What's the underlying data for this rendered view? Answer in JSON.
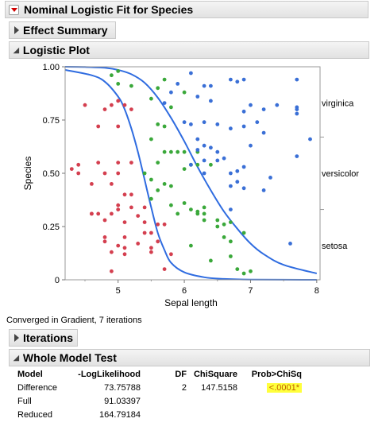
{
  "report": {
    "title": "Nominal Logistic Fit for Species",
    "effect_summary": "Effect Summary",
    "logistic_plot": "Logistic Plot",
    "converged": "Converged in Gradient, 7 iterations",
    "iterations": "Iterations",
    "whole_model_test": "Whole Model Test"
  },
  "chart_data": {
    "type": "scatter",
    "xlabel": "Sepal length",
    "ylabel": "Species",
    "xlim": [
      4.2,
      8.05
    ],
    "ylim": [
      0,
      1
    ],
    "x_ticks": [
      "5",
      "6",
      "7",
      "8"
    ],
    "y_ticks": [
      "0",
      "0.25",
      "0.50",
      "0.75",
      "1.00"
    ],
    "categories_right": [
      "virginica",
      "versicolor",
      "setosa"
    ],
    "colors": {
      "setosa": "#d43f4f",
      "versicolor": "#3aa83a",
      "virginica": "#3a6fd6",
      "curve": "#2f6ce0"
    },
    "curves": [
      {
        "name": "setosa|versicolor boundary",
        "x": [
          4.2,
          4.6,
          4.8,
          5.0,
          5.1,
          5.2,
          5.3,
          5.4,
          5.5,
          5.6,
          5.7,
          5.8,
          6.0,
          6.3,
          6.6,
          7.0,
          8.0
        ],
        "y": [
          0.985,
          0.96,
          0.93,
          0.86,
          0.8,
          0.71,
          0.6,
          0.47,
          0.34,
          0.22,
          0.14,
          0.08,
          0.035,
          0.012,
          0.004,
          0.001,
          0.0
        ]
      },
      {
        "name": "versicolor|virginica boundary",
        "x": [
          4.2,
          4.5,
          4.8,
          5.0,
          5.2,
          5.4,
          5.6,
          5.8,
          6.0,
          6.2,
          6.4,
          6.6,
          6.8,
          7.0,
          7.2,
          7.5,
          8.0
        ],
        "y": [
          1.0,
          0.999,
          0.995,
          0.985,
          0.965,
          0.925,
          0.855,
          0.76,
          0.65,
          0.53,
          0.42,
          0.32,
          0.24,
          0.17,
          0.12,
          0.07,
          0.03
        ]
      }
    ],
    "series": [
      {
        "name": "setosa",
        "points": [
          [
            4.3,
            0.52
          ],
          [
            4.4,
            0.54
          ],
          [
            4.4,
            0.5
          ],
          [
            4.5,
            0.82
          ],
          [
            4.6,
            0.31
          ],
          [
            4.6,
            0.31
          ],
          [
            4.7,
            0.31
          ],
          [
            4.8,
            0.18
          ],
          [
            4.8,
            0.2
          ],
          [
            4.9,
            0.31
          ],
          [
            5.0,
            0.33
          ],
          [
            5.0,
            0.35
          ],
          [
            5.0,
            0.16
          ],
          [
            4.9,
            0.13
          ],
          [
            5.1,
            0.12
          ],
          [
            5.1,
            0.2
          ],
          [
            5.1,
            0.27
          ],
          [
            5.1,
            0.82
          ],
          [
            5.0,
            0.84
          ],
          [
            5.0,
            0.72
          ],
          [
            5.2,
            0.8
          ],
          [
            5.2,
            0.55
          ],
          [
            5.2,
            0.4
          ],
          [
            5.4,
            0.34
          ],
          [
            5.4,
            0.27
          ],
          [
            5.3,
            0.17
          ],
          [
            5.5,
            0.15
          ],
          [
            5.7,
            0.26
          ],
          [
            5.8,
            0.12
          ],
          [
            5.6,
            0.18
          ],
          [
            4.7,
            0.72
          ],
          [
            4.8,
            0.8
          ],
          [
            4.7,
            0.55
          ],
          [
            4.6,
            0.45
          ],
          [
            4.8,
            0.5
          ],
          [
            5.0,
            0.5
          ],
          [
            5.1,
            0.4
          ],
          [
            5.2,
            0.34
          ],
          [
            5.3,
            0.3
          ],
          [
            5.4,
            0.22
          ],
          [
            5.5,
            0.13
          ],
          [
            5.7,
            0.05
          ],
          [
            4.9,
            0.04
          ],
          [
            4.9,
            0.82
          ],
          [
            5.0,
            0.55
          ],
          [
            5.1,
            0.15
          ],
          [
            4.8,
            0.28
          ],
          [
            4.9,
            0.45
          ],
          [
            5.6,
            0.26
          ],
          [
            5.5,
            0.22
          ]
        ]
      },
      {
        "name": "versicolor",
        "points": [
          [
            4.9,
            0.96
          ],
          [
            5.0,
            0.98
          ],
          [
            5.0,
            0.92
          ],
          [
            5.2,
            0.91
          ],
          [
            5.5,
            0.85
          ],
          [
            5.6,
            0.9
          ],
          [
            5.7,
            0.94
          ],
          [
            5.6,
            0.73
          ],
          [
            5.8,
            0.81
          ],
          [
            5.6,
            0.55
          ],
          [
            5.7,
            0.6
          ],
          [
            5.9,
            0.6
          ],
          [
            6.0,
            0.6
          ],
          [
            5.5,
            0.47
          ],
          [
            5.8,
            0.44
          ],
          [
            6.0,
            0.36
          ],
          [
            6.2,
            0.32
          ],
          [
            6.3,
            0.28
          ],
          [
            6.5,
            0.28
          ],
          [
            6.6,
            0.2
          ],
          [
            6.7,
            0.18
          ],
          [
            6.7,
            0.27
          ],
          [
            6.9,
            0.22
          ],
          [
            7.0,
            0.04
          ],
          [
            6.9,
            0.03
          ],
          [
            6.1,
            0.16
          ],
          [
            6.4,
            0.09
          ],
          [
            6.3,
            0.31
          ],
          [
            6.2,
            0.31
          ],
          [
            5.8,
            0.35
          ],
          [
            5.7,
            0.45
          ],
          [
            6.4,
            0.54
          ],
          [
            6.1,
            0.54
          ],
          [
            6.0,
            0.52
          ],
          [
            5.9,
            0.31
          ],
          [
            5.6,
            0.42
          ],
          [
            5.4,
            0.5
          ],
          [
            5.5,
            0.66
          ],
          [
            5.7,
            0.72
          ],
          [
            6.0,
            0.88
          ],
          [
            5.5,
            0.38
          ],
          [
            5.8,
            0.6
          ],
          [
            6.1,
            0.33
          ],
          [
            6.2,
            0.54
          ],
          [
            6.6,
            0.26
          ],
          [
            6.7,
            0.11
          ],
          [
            6.8,
            0.05
          ],
          [
            6.5,
            0.25
          ],
          [
            6.2,
            0.6
          ],
          [
            6.3,
            0.34
          ]
        ]
      },
      {
        "name": "virginica",
        "points": [
          [
            5.9,
            0.92
          ],
          [
            6.1,
            0.97
          ],
          [
            6.3,
            0.91
          ],
          [
            6.4,
            0.91
          ],
          [
            6.7,
            0.94
          ],
          [
            6.8,
            0.93
          ],
          [
            6.9,
            0.94
          ],
          [
            7.7,
            0.94
          ],
          [
            7.4,
            0.82
          ],
          [
            7.7,
            0.81
          ],
          [
            7.7,
            0.78
          ],
          [
            7.9,
            0.66
          ],
          [
            7.7,
            0.58
          ],
          [
            7.2,
            0.69
          ],
          [
            7.3,
            0.48
          ],
          [
            7.0,
            0.63
          ],
          [
            6.9,
            0.53
          ],
          [
            6.8,
            0.51
          ],
          [
            6.8,
            0.46
          ],
          [
            6.7,
            0.44
          ],
          [
            6.7,
            0.5
          ],
          [
            6.9,
            0.43
          ],
          [
            7.2,
            0.42
          ],
          [
            7.6,
            0.17
          ],
          [
            6.3,
            0.63
          ],
          [
            6.4,
            0.62
          ],
          [
            6.5,
            0.6
          ],
          [
            6.2,
            0.61
          ],
          [
            6.1,
            0.54
          ],
          [
            6.0,
            0.74
          ],
          [
            6.1,
            0.73
          ],
          [
            6.3,
            0.74
          ],
          [
            6.5,
            0.73
          ],
          [
            6.7,
            0.71
          ],
          [
            6.9,
            0.72
          ],
          [
            7.1,
            0.74
          ],
          [
            5.8,
            0.88
          ],
          [
            5.7,
            0.83
          ],
          [
            6.2,
            0.86
          ],
          [
            6.4,
            0.84
          ],
          [
            6.5,
            0.56
          ],
          [
            6.6,
            0.57
          ],
          [
            6.3,
            0.56
          ],
          [
            6.9,
            0.79
          ],
          [
            7.0,
            0.82
          ],
          [
            7.2,
            0.8
          ],
          [
            7.7,
            0.8
          ],
          [
            6.7,
            0.33
          ],
          [
            6.3,
            0.5
          ],
          [
            6.2,
            0.66
          ]
        ]
      }
    ]
  },
  "whole_model": {
    "headers": [
      "Model",
      "-LogLikelihood",
      "DF",
      "ChiSquare",
      "Prob>ChiSq"
    ],
    "rows": [
      {
        "model": "Difference",
        "loglik": "73.75788",
        "df": "2",
        "chisq": "147.5158",
        "prob": "<.0001*"
      },
      {
        "model": "Full",
        "loglik": "91.03397",
        "df": "",
        "chisq": "",
        "prob": ""
      },
      {
        "model": "Reduced",
        "loglik": "164.79184",
        "df": "",
        "chisq": "",
        "prob": ""
      }
    ]
  }
}
